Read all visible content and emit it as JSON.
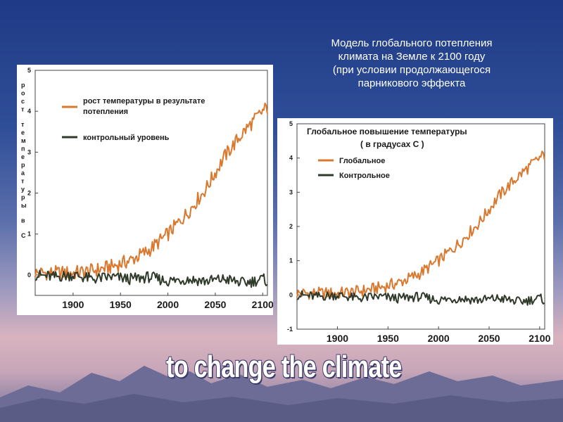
{
  "caption": {
    "lines": [
      "Модель глобального потепления",
      "климата на Земле к 2100 году",
      "(при условии продолжающегося",
      "парникового эффекта"
    ]
  },
  "slogan": "to change the climate",
  "colors": {
    "warming_series": "#d9782f",
    "control_series": "#2f3a2a"
  },
  "chart_data": [
    {
      "type": "line",
      "title": "",
      "ylabel": "рост температуры в С",
      "xlabel": "",
      "xlim": [
        1860,
        2105
      ],
      "ylim": [
        -0.5,
        5
      ],
      "x_ticks": [
        "1900",
        "1950",
        "2000",
        "2050",
        "2100"
      ],
      "y_ticks": [
        "0",
        "1",
        "2",
        "3",
        "4",
        "5"
      ],
      "series": [
        {
          "name": "рост температуры в результате потепления",
          "x": [
            1860,
            1880,
            1900,
            1920,
            1940,
            1960,
            1980,
            2000,
            2020,
            2040,
            2060,
            2080,
            2100,
            2105
          ],
          "y": [
            0.05,
            0.05,
            0.05,
            0.1,
            0.2,
            0.35,
            0.6,
            1.0,
            1.5,
            2.1,
            2.9,
            3.5,
            4.0,
            4.1
          ]
        },
        {
          "name": "контрольный уровень",
          "x": [
            1860,
            1880,
            1900,
            1920,
            1940,
            1960,
            1980,
            2000,
            2020,
            2040,
            2060,
            2080,
            2100,
            2105
          ],
          "y": [
            0.0,
            -0.05,
            0.0,
            -0.1,
            -0.05,
            -0.1,
            -0.05,
            -0.15,
            -0.1,
            -0.15,
            -0.1,
            -0.2,
            -0.1,
            -0.15
          ]
        }
      ],
      "legend": "top-left"
    },
    {
      "type": "line",
      "title": "Глобальное повышение температуры",
      "subtitle": "( в градусах С )",
      "xlabel": "",
      "ylabel": "",
      "xlim": [
        1860,
        2105
      ],
      "ylim": [
        -1,
        5
      ],
      "x_ticks": [
        "1900",
        "1950",
        "2000",
        "2050",
        "2100"
      ],
      "y_ticks": [
        "-1",
        "0",
        "1",
        "2",
        "3",
        "4",
        "5"
      ],
      "series": [
        {
          "name": "Глобальное",
          "x": [
            1860,
            1880,
            1900,
            1920,
            1940,
            1960,
            1980,
            2000,
            2020,
            2040,
            2060,
            2080,
            2100,
            2105
          ],
          "y": [
            0.05,
            0.05,
            0.05,
            0.1,
            0.2,
            0.35,
            0.6,
            1.0,
            1.5,
            2.1,
            2.9,
            3.5,
            4.0,
            4.1
          ]
        },
        {
          "name": "Контрольное",
          "x": [
            1860,
            1880,
            1900,
            1920,
            1940,
            1960,
            1980,
            2000,
            2020,
            2040,
            2060,
            2080,
            2100,
            2105
          ],
          "y": [
            0.0,
            -0.05,
            0.0,
            -0.1,
            -0.05,
            -0.1,
            -0.05,
            -0.15,
            -0.1,
            -0.15,
            -0.1,
            -0.2,
            -0.1,
            -0.15
          ]
        }
      ],
      "legend": "top-left"
    }
  ]
}
